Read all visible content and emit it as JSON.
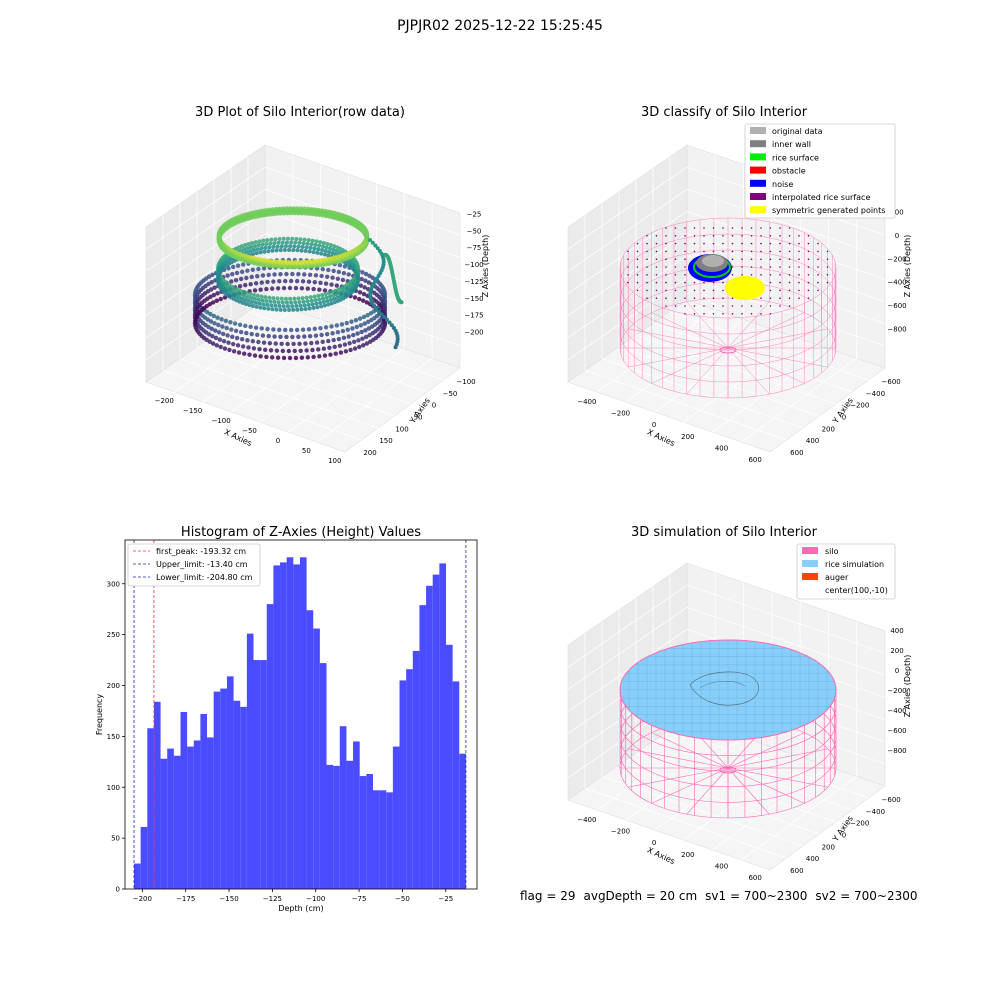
{
  "figure": {
    "suptitle": "PJPJR02 2025-12-22 15:25:45",
    "footer": {
      "flag": "flag = 29",
      "avg_depth": "avgDepth = 20 cm",
      "sv1": "sv1 = 700~2300",
      "sv2": "sv2 = 700~2300"
    }
  },
  "colors": {
    "hist_bar": "#4b4bff",
    "first_peak": "#ff3030",
    "limits": "#2020c0",
    "silo": "#ff69b4",
    "rice": "#87cefa",
    "auger": "#ff4500",
    "original": "#b0b0b0",
    "inner_wall": "#808080",
    "rice_surface": "#00ee00",
    "obstacle": "#ff0000",
    "noise": "#0000ff",
    "interp_surface": "#800080",
    "symmetric": "#ffff00"
  },
  "chart_data": [
    {
      "type": "scatter",
      "projection": "3d",
      "title": "3D Plot of Silo Interior(row data)",
      "xlabel": "X Axies",
      "ylabel": "Y Axies",
      "zlabel": "Z Axies (Depth)",
      "x_ticks": [
        "−200",
        "−150",
        "−100",
        "−50",
        "0",
        "50",
        "100"
      ],
      "y_ticks": [
        "200",
        "150",
        "100",
        "50",
        "0",
        "−50",
        "−100"
      ],
      "z_ticks": [
        "−25",
        "−50",
        "−75",
        "−100",
        "−125",
        "−150",
        "−175",
        "−200"
      ],
      "xlim": [
        -210,
        120
      ],
      "ylim": [
        -110,
        210
      ],
      "zlim": [
        -215,
        -10
      ],
      "colormap": "viridis",
      "grid": true
    },
    {
      "type": "scatter",
      "projection": "3d",
      "title": "3D classify of Silo Interior",
      "xlabel": "X Axies",
      "ylabel": "Y Axies",
      "zlabel": "Z Axies (Depth)",
      "x_ticks": [
        "−400",
        "−200",
        "0",
        "200",
        "400",
        "600"
      ],
      "y_ticks": [
        "600",
        "400",
        "200",
        "0",
        "−200",
        "−400",
        "−600"
      ],
      "z_ticks": [
        "200",
        "0",
        "−200",
        "−400",
        "−600",
        "−800"
      ],
      "legend_position": "top-right",
      "legend": [
        {
          "label": "original data",
          "color": "#b0b0b0"
        },
        {
          "label": "inner wall",
          "color": "#808080"
        },
        {
          "label": "rice surface",
          "color": "#00ee00"
        },
        {
          "label": "obstacle",
          "color": "#ff0000"
        },
        {
          "label": "noise",
          "color": "#0000ff"
        },
        {
          "label": "interpolated rice surface",
          "color": "#800080"
        },
        {
          "label": "symmetric generated points",
          "color": "#ffff00"
        }
      ],
      "grid": true
    },
    {
      "type": "bar",
      "title": "Histogram of Z-Axies (Height) Values",
      "xlabel": "Depth (cm)",
      "ylabel": "Frequency",
      "xlim": [
        -210,
        -7
      ],
      "ylim": [
        0,
        343
      ],
      "x_ticks": [
        -200,
        -175,
        -150,
        -125,
        -100,
        -75,
        -50,
        -25
      ],
      "x_tick_labels": [
        "−200",
        "−175",
        "−150",
        "−125",
        "−100",
        "−75",
        "−50",
        "−25"
      ],
      "y_ticks": [
        0,
        50,
        100,
        150,
        200,
        250,
        300
      ],
      "bin_start": -204.8,
      "bin_end": -13.4,
      "values": [
        25,
        61,
        158,
        184,
        128,
        138,
        131,
        174,
        140,
        146,
        172,
        149,
        194,
        197,
        209,
        185,
        179,
        251,
        225,
        225,
        280,
        318,
        321,
        326,
        319,
        326,
        274,
        256,
        222,
        122,
        121,
        160,
        126,
        145,
        111,
        113,
        97,
        97,
        95,
        140,
        205,
        216,
        234,
        279,
        298,
        309,
        320,
        240,
        204,
        133
      ],
      "vlines": [
        {
          "label": "first_peak: -193.32 cm",
          "x": -193.32,
          "color": "#ff3030"
        },
        {
          "label": "Upper_limit: -13.40 cm",
          "x": -13.4,
          "color": "#2020c0"
        },
        {
          "label": "Lower_limit: -204.80 cm",
          "x": -204.8,
          "color": "#2020c0"
        }
      ],
      "legend_position": "top-left",
      "grid": false
    },
    {
      "type": "surface",
      "projection": "3d",
      "title": "3D simulation of Silo Interior",
      "xlabel": "X Axies",
      "ylabel": "Y Axies",
      "zlabel": "Z Axies (Depth)",
      "x_ticks": [
        "−400",
        "−200",
        "0",
        "200",
        "400",
        "600"
      ],
      "y_ticks": [
        "600",
        "400",
        "200",
        "0",
        "−200",
        "−400",
        "−600"
      ],
      "z_ticks": [
        "400",
        "200",
        "0",
        "−200",
        "−400",
        "−600",
        "−800"
      ],
      "legend_position": "top-right",
      "legend": [
        {
          "label": "silo",
          "color": "#ff69b4"
        },
        {
          "label": "rice simulation",
          "color": "#87cefa"
        },
        {
          "label": "auger",
          "color": "#ff4500"
        },
        {
          "label": "center(100,-10)",
          "color": ""
        }
      ],
      "grid": true
    }
  ]
}
